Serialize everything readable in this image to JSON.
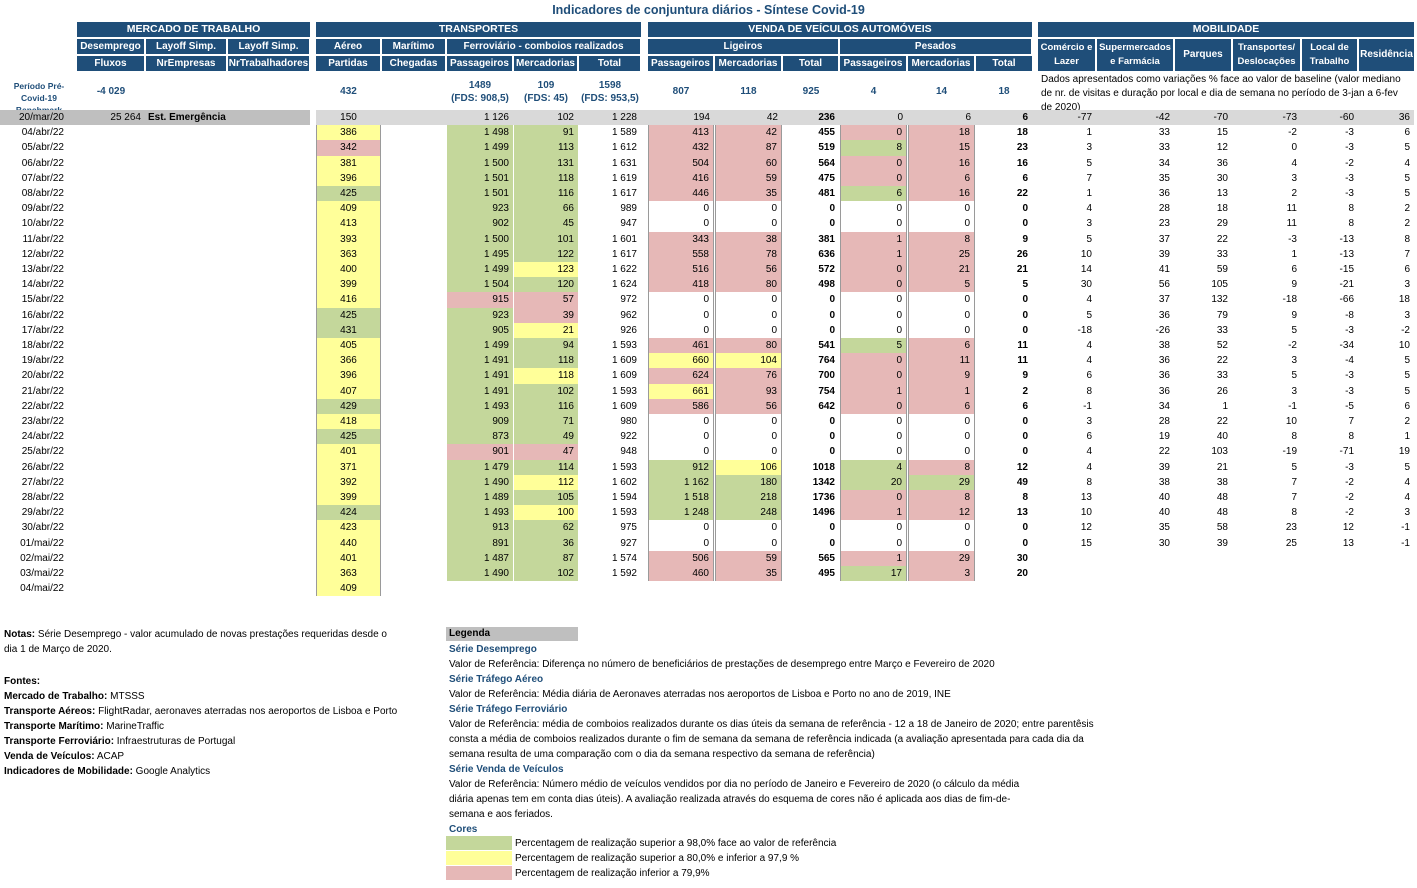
{
  "title": "Indicadores de conjuntura diários - Síntese Covid-19",
  "groups": {
    "mercado": "MERCADO DE TRABALHO",
    "transportes": "TRANSPORTES",
    "venda": "VENDA DE VEÍCULOS AUTOMÓVEIS",
    "mobilidade": "MOBILIDADE"
  },
  "subgroups": {
    "desemprego": "Desemprego",
    "layoff1": "Layoff Simp.",
    "layoff2": "Layoff Simp.",
    "aereo": "Aéreo",
    "maritimo": "Marítimo",
    "ferroviario": "Ferroviário - comboios realizados",
    "ligeiros": "Ligeiros",
    "pesados": "Pesados",
    "comercio": "Comércio e Lazer",
    "supermercados": "Supermercados e Farmácia",
    "parques": "Parques",
    "transportes_desl": "Transportes/ Deslocações",
    "local_trabalho": "Local de Trabalho",
    "residencia": "Residência"
  },
  "columns": {
    "fluxos": "Fluxos",
    "nrempresas": "NrEmpresas",
    "nrtrabalhadores": "NrTrabalhadores",
    "partidas": "Partidas",
    "chegadas": "Chegadas",
    "passageiros": "Passageiros",
    "mercadorias": "Mercadorias",
    "total": "Total"
  },
  "benchmark": {
    "label": "Período Pré-Covid-19 Benchmark",
    "desemprego": "-4 029",
    "aereo": "432",
    "ferro_pass": "1489",
    "ferro_pass_fds": "(FDS: 908,5)",
    "ferro_merc": "109",
    "ferro_merc_fds": "(FDS: 45)",
    "ferro_total": "1598",
    "ferro_total_fds": "(FDS: 953,5)",
    "lig_pass": "807",
    "lig_merc": "118",
    "lig_total": "925",
    "pes_pass": "4",
    "pes_merc": "14",
    "pes_total": "18",
    "mobilidade_note": "Dados apresentados como variações % face ao valor de baseline (valor mediano de nr. de visitas e duração por local e dia de semana no período de 3-jan a 6-fev de 2020)"
  },
  "ref_row": {
    "date": "20/mar/20",
    "desemprego": "25 264",
    "label": "Est. Emergência",
    "aereo": "150",
    "fp": "1 126",
    "fm": "102",
    "ft": "1 228",
    "lp": "194",
    "lm": "42",
    "lt": "236",
    "pp": "0",
    "pm": "6",
    "pt": "6",
    "mob": [
      "-77",
      "-42",
      "-70",
      "-73",
      "-60",
      "36"
    ]
  },
  "rows": [
    {
      "d": "04/abr/22",
      "a": "386",
      "ac": "y",
      "fp": "1 498",
      "fpc": "g",
      "fm": "91",
      "fmc": "g",
      "ft": "1 589",
      "lp": "413",
      "lpc": "p",
      "lm": "42",
      "lmc": "p",
      "lt": "455",
      "pp": "0",
      "ppc": "p",
      "pm": "18",
      "pmc": "p",
      "pt": "18",
      "m": [
        "1",
        "33",
        "15",
        "-2",
        "-3",
        "6"
      ]
    },
    {
      "d": "05/abr/22",
      "a": "342",
      "ac": "p",
      "fp": "1 499",
      "fpc": "g",
      "fm": "113",
      "fmc": "g",
      "ft": "1 612",
      "lp": "432",
      "lpc": "p",
      "lm": "87",
      "lmc": "p",
      "lt": "519",
      "pp": "8",
      "ppc": "g",
      "pm": "15",
      "pmc": "p",
      "pt": "23",
      "m": [
        "3",
        "33",
        "12",
        "0",
        "-3",
        "5"
      ]
    },
    {
      "d": "06/abr/22",
      "a": "381",
      "ac": "y",
      "fp": "1 500",
      "fpc": "g",
      "fm": "131",
      "fmc": "g",
      "ft": "1 631",
      "lp": "504",
      "lpc": "p",
      "lm": "60",
      "lmc": "p",
      "lt": "564",
      "pp": "0",
      "ppc": "p",
      "pm": "16",
      "pmc": "p",
      "pt": "16",
      "m": [
        "5",
        "34",
        "36",
        "4",
        "-2",
        "4"
      ]
    },
    {
      "d": "07/abr/22",
      "a": "396",
      "ac": "y",
      "fp": "1 501",
      "fpc": "g",
      "fm": "118",
      "fmc": "g",
      "ft": "1 619",
      "lp": "416",
      "lpc": "p",
      "lm": "59",
      "lmc": "p",
      "lt": "475",
      "pp": "0",
      "ppc": "p",
      "pm": "6",
      "pmc": "p",
      "pt": "6",
      "m": [
        "7",
        "35",
        "30",
        "3",
        "-3",
        "5"
      ]
    },
    {
      "d": "08/abr/22",
      "a": "425",
      "ac": "g",
      "fp": "1 501",
      "fpc": "g",
      "fm": "116",
      "fmc": "g",
      "ft": "1 617",
      "lp": "446",
      "lpc": "p",
      "lm": "35",
      "lmc": "p",
      "lt": "481",
      "pp": "6",
      "ppc": "g",
      "pm": "16",
      "pmc": "p",
      "pt": "22",
      "m": [
        "1",
        "36",
        "13",
        "2",
        "-3",
        "5"
      ]
    },
    {
      "d": "09/abr/22",
      "a": "409",
      "ac": "y",
      "fp": "923",
      "fpc": "g",
      "fm": "66",
      "fmc": "g",
      "ft": "989",
      "lp": "0",
      "lpc": "w",
      "lm": "0",
      "lmc": "w",
      "lt": "0",
      "pp": "0",
      "ppc": "w",
      "pm": "0",
      "pmc": "w",
      "pt": "0",
      "m": [
        "4",
        "28",
        "18",
        "11",
        "8",
        "2"
      ]
    },
    {
      "d": "10/abr/22",
      "a": "413",
      "ac": "y",
      "fp": "902",
      "fpc": "g",
      "fm": "45",
      "fmc": "g",
      "ft": "947",
      "lp": "0",
      "lpc": "w",
      "lm": "0",
      "lmc": "w",
      "lt": "0",
      "pp": "0",
      "ppc": "w",
      "pm": "0",
      "pmc": "w",
      "pt": "0",
      "m": [
        "3",
        "23",
        "29",
        "11",
        "8",
        "2"
      ]
    },
    {
      "d": "11/abr/22",
      "a": "393",
      "ac": "y",
      "fp": "1 500",
      "fpc": "g",
      "fm": "101",
      "fmc": "g",
      "ft": "1 601",
      "lp": "343",
      "lpc": "p",
      "lm": "38",
      "lmc": "p",
      "lt": "381",
      "pp": "1",
      "ppc": "p",
      "pm": "8",
      "pmc": "p",
      "pt": "9",
      "m": [
        "5",
        "37",
        "22",
        "-3",
        "-13",
        "8"
      ]
    },
    {
      "d": "12/abr/22",
      "a": "363",
      "ac": "y",
      "fp": "1 495",
      "fpc": "g",
      "fm": "122",
      "fmc": "g",
      "ft": "1 617",
      "lp": "558",
      "lpc": "p",
      "lm": "78",
      "lmc": "p",
      "lt": "636",
      "pp": "1",
      "ppc": "p",
      "pm": "25",
      "pmc": "p",
      "pt": "26",
      "m": [
        "10",
        "39",
        "33",
        "1",
        "-13",
        "7"
      ]
    },
    {
      "d": "13/abr/22",
      "a": "400",
      "ac": "y",
      "fp": "1 499",
      "fpc": "g",
      "fm": "123",
      "fmc": "y",
      "ft": "1 622",
      "lp": "516",
      "lpc": "p",
      "lm": "56",
      "lmc": "p",
      "lt": "572",
      "pp": "0",
      "ppc": "p",
      "pm": "21",
      "pmc": "p",
      "pt": "21",
      "m": [
        "14",
        "41",
        "59",
        "6",
        "-15",
        "6"
      ]
    },
    {
      "d": "14/abr/22",
      "a": "399",
      "ac": "y",
      "fp": "1 504",
      "fpc": "g",
      "fm": "120",
      "fmc": "g",
      "ft": "1 624",
      "lp": "418",
      "lpc": "p",
      "lm": "80",
      "lmc": "p",
      "lt": "498",
      "pp": "0",
      "ppc": "p",
      "pm": "5",
      "pmc": "p",
      "pt": "5",
      "m": [
        "30",
        "56",
        "105",
        "9",
        "-21",
        "3"
      ]
    },
    {
      "d": "15/abr/22",
      "a": "416",
      "ac": "y",
      "fp": "915",
      "fpc": "p",
      "fm": "57",
      "fmc": "p",
      "ft": "972",
      "lp": "0",
      "lpc": "w",
      "lm": "0",
      "lmc": "w",
      "lt": "0",
      "pp": "0",
      "ppc": "w",
      "pm": "0",
      "pmc": "w",
      "pt": "0",
      "m": [
        "4",
        "37",
        "132",
        "-18",
        "-66",
        "18"
      ]
    },
    {
      "d": "16/abr/22",
      "a": "425",
      "ac": "g",
      "fp": "923",
      "fpc": "g",
      "fm": "39",
      "fmc": "p",
      "ft": "962",
      "lp": "0",
      "lpc": "w",
      "lm": "0",
      "lmc": "w",
      "lt": "0",
      "pp": "0",
      "ppc": "w",
      "pm": "0",
      "pmc": "w",
      "pt": "0",
      "m": [
        "5",
        "36",
        "79",
        "9",
        "-8",
        "3"
      ]
    },
    {
      "d": "17/abr/22",
      "a": "431",
      "ac": "g",
      "fp": "905",
      "fpc": "g",
      "fm": "21",
      "fmc": "y",
      "ft": "926",
      "lp": "0",
      "lpc": "w",
      "lm": "0",
      "lmc": "w",
      "lt": "0",
      "pp": "0",
      "ppc": "w",
      "pm": "0",
      "pmc": "w",
      "pt": "0",
      "m": [
        "-18",
        "-26",
        "33",
        "5",
        "-3",
        "-2"
      ]
    },
    {
      "d": "18/abr/22",
      "a": "405",
      "ac": "y",
      "fp": "1 499",
      "fpc": "g",
      "fm": "94",
      "fmc": "g",
      "ft": "1 593",
      "lp": "461",
      "lpc": "p",
      "lm": "80",
      "lmc": "p",
      "lt": "541",
      "pp": "5",
      "ppc": "g",
      "pm": "6",
      "pmc": "p",
      "pt": "11",
      "m": [
        "4",
        "38",
        "52",
        "-2",
        "-34",
        "10"
      ]
    },
    {
      "d": "19/abr/22",
      "a": "366",
      "ac": "y",
      "fp": "1 491",
      "fpc": "g",
      "fm": "118",
      "fmc": "g",
      "ft": "1 609",
      "lp": "660",
      "lpc": "y",
      "lm": "104",
      "lmc": "y",
      "lt": "764",
      "pp": "0",
      "ppc": "p",
      "pm": "11",
      "pmc": "p",
      "pt": "11",
      "m": [
        "4",
        "36",
        "22",
        "3",
        "-4",
        "5"
      ]
    },
    {
      "d": "20/abr/22",
      "a": "396",
      "ac": "y",
      "fp": "1 491",
      "fpc": "g",
      "fm": "118",
      "fmc": "y",
      "ft": "1 609",
      "lp": "624",
      "lpc": "p",
      "lm": "76",
      "lmc": "p",
      "lt": "700",
      "pp": "0",
      "ppc": "p",
      "pm": "9",
      "pmc": "p",
      "pt": "9",
      "m": [
        "6",
        "36",
        "33",
        "5",
        "-3",
        "5"
      ]
    },
    {
      "d": "21/abr/22",
      "a": "407",
      "ac": "y",
      "fp": "1 491",
      "fpc": "g",
      "fm": "102",
      "fmc": "g",
      "ft": "1 593",
      "lp": "661",
      "lpc": "y",
      "lm": "93",
      "lmc": "p",
      "lt": "754",
      "pp": "1",
      "ppc": "p",
      "pm": "1",
      "pmc": "p",
      "pt": "2",
      "m": [
        "8",
        "36",
        "26",
        "3",
        "-3",
        "5"
      ]
    },
    {
      "d": "22/abr/22",
      "a": "429",
      "ac": "g",
      "fp": "1 493",
      "fpc": "g",
      "fm": "116",
      "fmc": "g",
      "ft": "1 609",
      "lp": "586",
      "lpc": "p",
      "lm": "56",
      "lmc": "p",
      "lt": "642",
      "pp": "0",
      "ppc": "p",
      "pm": "6",
      "pmc": "p",
      "pt": "6",
      "m": [
        "-1",
        "34",
        "1",
        "-1",
        "-5",
        "6"
      ]
    },
    {
      "d": "23/abr/22",
      "a": "418",
      "ac": "y",
      "fp": "909",
      "fpc": "g",
      "fm": "71",
      "fmc": "g",
      "ft": "980",
      "lp": "0",
      "lpc": "w",
      "lm": "0",
      "lmc": "w",
      "lt": "0",
      "pp": "0",
      "ppc": "w",
      "pm": "0",
      "pmc": "w",
      "pt": "0",
      "m": [
        "3",
        "28",
        "22",
        "10",
        "7",
        "2"
      ]
    },
    {
      "d": "24/abr/22",
      "a": "425",
      "ac": "g",
      "fp": "873",
      "fpc": "g",
      "fm": "49",
      "fmc": "g",
      "ft": "922",
      "lp": "0",
      "lpc": "w",
      "lm": "0",
      "lmc": "w",
      "lt": "0",
      "pp": "0",
      "ppc": "w",
      "pm": "0",
      "pmc": "w",
      "pt": "0",
      "m": [
        "6",
        "19",
        "40",
        "8",
        "8",
        "1"
      ]
    },
    {
      "d": "25/abr/22",
      "a": "401",
      "ac": "y",
      "fp": "901",
      "fpc": "p",
      "fm": "47",
      "fmc": "p",
      "ft": "948",
      "lp": "0",
      "lpc": "w",
      "lm": "0",
      "lmc": "w",
      "lt": "0",
      "pp": "0",
      "ppc": "w",
      "pm": "0",
      "pmc": "w",
      "pt": "0",
      "m": [
        "4",
        "22",
        "103",
        "-19",
        "-71",
        "19"
      ]
    },
    {
      "d": "26/abr/22",
      "a": "371",
      "ac": "y",
      "fp": "1 479",
      "fpc": "g",
      "fm": "114",
      "fmc": "g",
      "ft": "1 593",
      "lp": "912",
      "lpc": "g",
      "lm": "106",
      "lmc": "y",
      "lt": "1018",
      "pp": "4",
      "ppc": "g",
      "pm": "8",
      "pmc": "p",
      "pt": "12",
      "m": [
        "4",
        "39",
        "21",
        "5",
        "-3",
        "5"
      ]
    },
    {
      "d": "27/abr/22",
      "a": "392",
      "ac": "y",
      "fp": "1 490",
      "fpc": "g",
      "fm": "112",
      "fmc": "y",
      "ft": "1 602",
      "lp": "1 162",
      "lpc": "g",
      "lm": "180",
      "lmc": "g",
      "lt": "1342",
      "pp": "20",
      "ppc": "g",
      "pm": "29",
      "pmc": "g",
      "pt": "49",
      "m": [
        "8",
        "38",
        "38",
        "7",
        "-2",
        "4"
      ]
    },
    {
      "d": "28/abr/22",
      "a": "399",
      "ac": "y",
      "fp": "1 489",
      "fpc": "g",
      "fm": "105",
      "fmc": "g",
      "ft": "1 594",
      "lp": "1 518",
      "lpc": "g",
      "lm": "218",
      "lmc": "g",
      "lt": "1736",
      "pp": "0",
      "ppc": "p",
      "pm": "8",
      "pmc": "p",
      "pt": "8",
      "m": [
        "13",
        "40",
        "48",
        "7",
        "-2",
        "4"
      ]
    },
    {
      "d": "29/abr/22",
      "a": "424",
      "ac": "g",
      "fp": "1 493",
      "fpc": "g",
      "fm": "100",
      "fmc": "y",
      "ft": "1 593",
      "lp": "1 248",
      "lpc": "g",
      "lm": "248",
      "lmc": "g",
      "lt": "1496",
      "pp": "1",
      "ppc": "p",
      "pm": "12",
      "pmc": "p",
      "pt": "13",
      "m": [
        "10",
        "40",
        "48",
        "8",
        "-2",
        "3"
      ]
    },
    {
      "d": "30/abr/22",
      "a": "423",
      "ac": "y",
      "fp": "913",
      "fpc": "g",
      "fm": "62",
      "fmc": "g",
      "ft": "975",
      "lp": "0",
      "lpc": "w",
      "lm": "0",
      "lmc": "w",
      "lt": "0",
      "pp": "0",
      "ppc": "w",
      "pm": "0",
      "pmc": "w",
      "pt": "0",
      "m": [
        "12",
        "35",
        "58",
        "23",
        "12",
        "-1"
      ]
    },
    {
      "d": "01/mai/22",
      "a": "440",
      "ac": "y",
      "fp": "891",
      "fpc": "g",
      "fm": "36",
      "fmc": "g",
      "ft": "927",
      "lp": "0",
      "lpc": "w",
      "lm": "0",
      "lmc": "w",
      "lt": "0",
      "pp": "0",
      "ppc": "w",
      "pm": "0",
      "pmc": "w",
      "pt": "0",
      "m": [
        "15",
        "30",
        "39",
        "25",
        "13",
        "-1"
      ]
    },
    {
      "d": "02/mai/22",
      "a": "401",
      "ac": "y",
      "fp": "1 487",
      "fpc": "g",
      "fm": "87",
      "fmc": "g",
      "ft": "1 574",
      "lp": "506",
      "lpc": "p",
      "lm": "59",
      "lmc": "p",
      "lt": "565",
      "pp": "1",
      "ppc": "p",
      "pm": "29",
      "pmc": "p",
      "pt": "30",
      "m": null
    },
    {
      "d": "03/mai/22",
      "a": "363",
      "ac": "y",
      "fp": "1 490",
      "fpc": "g",
      "fm": "102",
      "fmc": "g",
      "ft": "1 592",
      "lp": "460",
      "lpc": "p",
      "lm": "35",
      "lmc": "p",
      "lt": "495",
      "pp": "17",
      "ppc": "g",
      "pm": "3",
      "pmc": "p",
      "pt": "20",
      "m": null
    },
    {
      "d": "04/mai/22",
      "a": "409",
      "ac": "y",
      "fp": null,
      "m": null
    }
  ],
  "notes": {
    "notas_label": "Notas:",
    "notas_text1": " Série Desemprego - valor acumulado de novas prestações requeridas desde o",
    "notas_text2": "dia 1 de Março de 2020.",
    "fontes_label": "Fontes:",
    "fontes": [
      {
        "k": "Mercado de Trabalho:",
        "v": " MTSSS"
      },
      {
        "k": "Transporte Aéreos:",
        "v": " FlightRadar, aeronaves aterradas nos aeroportos de Lisboa e Porto"
      },
      {
        "k": "Transporte Marítimo:",
        "v": " MarineTraffic"
      },
      {
        "k": "Transporte Ferroviário:",
        "v": " Infraestruturas de Portugal"
      },
      {
        "k": "Venda de Veículos:",
        "v": " ACAP"
      },
      {
        "k": "Indicadores de Mobilidade:",
        "v": " Google Analytics"
      }
    ]
  },
  "legend": {
    "title": "Legenda",
    "s1_h": "Série Desemprego",
    "s1_t": "Valor de Referência: Diferença no número de beneficiários de prestações de desemprego entre Março e Fevereiro de 2020",
    "s2_h": "Série Tráfego Aéreo",
    "s2_t": "Valor de Referência: Média diária de Aeronaves aterradas nos aeroportos de Lisboa e Porto no ano de 2019, INE",
    "s3_h": "Série Tráfego Ferroviário",
    "s3_t1": "Valor de Referência: média de comboios realizados durante os dias úteis da semana de referência - 12 a 18 de Janeiro de 2020; entre parentêsis",
    "s3_t2": "consta a média de comboios realizados durante o fim de semana da semana de referência indicada (a avaliação apresentada para cada dia da",
    "s3_t3": "semana resulta de uma comparação com o dia da semana respectivo da semana de referência)",
    "s4_h": "Série Venda de Veículos",
    "s4_t1": "Valor de Referência: Número médio de veículos vendidos por dia no período de Janeiro e Fevereiro de 2020 (o cálculo da média",
    "s4_t2": "diária apenas tem em conta dias úteis). A avaliação realizada através do esquema de cores não é aplicada aos dias de fim-de-",
    "s4_t3": "semana e aos feriados.",
    "cores_h": "Cores",
    "c1": "Percentagem de realização superior a 98,0% face ao valor de referência",
    "c2": "Percentagem de realização superior a 80,0% e inferior a 97,9 %",
    "c3": "Percentagem de realização inferior a 79,9%",
    "colors": {
      "green": "#c4d79b",
      "yellow": "#ffff99",
      "pink": "#e6b8b7"
    }
  }
}
